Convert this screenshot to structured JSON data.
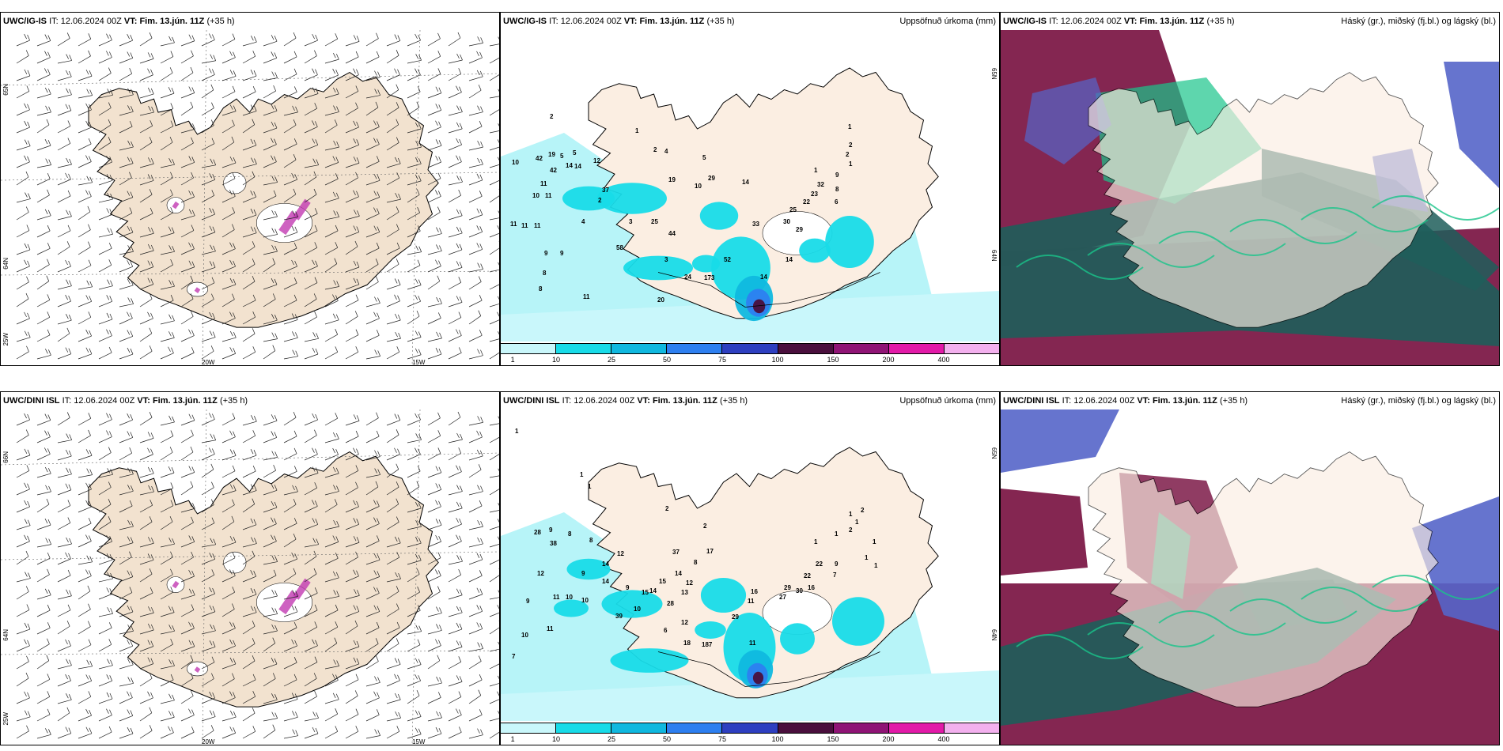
{
  "colors": {
    "land": "#f2e2cf",
    "land_light": "#fbeee2",
    "sea_precip": "#b7f4f8",
    "cyan": "#16d9e6",
    "blue": "#3f7fd8",
    "purple": "#6b2b8f",
    "maroon": "#7d1a48",
    "teal": "#1e5e5a",
    "green": "#19c48a",
    "cloud_blue": "#5565c9",
    "magenta": "#c23ab2"
  },
  "legend": {
    "labels": [
      "1",
      "10",
      "25",
      "50",
      "75",
      "100",
      "150",
      "200",
      "400"
    ],
    "colors": [
      "#c9f7fb",
      "#18dbe8",
      "#10b8df",
      "#2d7ff0",
      "#2e3fc0",
      "#4a0f3d",
      "#8f1475",
      "#e21aa8",
      "#f3b0ee"
    ]
  },
  "rows": [
    {
      "model": "UWC/IG-IS",
      "wind": {
        "it_label": "IT:",
        "it": "12.06.2024 00Z",
        "vt_label": "VT:",
        "vt": "Fim. 13.jún. 11Z",
        "lead": "(+35 h)",
        "lon_labels": [
          "20W",
          "15W"
        ],
        "lat_labels": [
          "65N",
          "64N",
          "25W"
        ]
      },
      "precip": {
        "it_label": "IT:",
        "it": "12.06.2024 00Z",
        "vt_label": "VT:",
        "vt": "Fim. 13.jún. 11Z",
        "lead": "(+35 h)",
        "right": "Uppsöfnuð úrkoma (mm)",
        "lat_labels": [
          "65N",
          "64N"
        ],
        "numbers": [
          {
            "t": "2",
            "x": 62,
            "y": 112
          },
          {
            "t": "1",
            "x": 170,
            "y": 130
          },
          {
            "t": "10",
            "x": 14,
            "y": 170
          },
          {
            "t": "42",
            "x": 44,
            "y": 165
          },
          {
            "t": "19",
            "x": 60,
            "y": 160
          },
          {
            "t": "5",
            "x": 75,
            "y": 162
          },
          {
            "t": "5",
            "x": 91,
            "y": 158
          },
          {
            "t": "42",
            "x": 62,
            "y": 180
          },
          {
            "t": "14",
            "x": 82,
            "y": 174
          },
          {
            "t": "14",
            "x": 93,
            "y": 175
          },
          {
            "t": "12",
            "x": 117,
            "y": 168
          },
          {
            "t": "2",
            "x": 193,
            "y": 154
          },
          {
            "t": "4",
            "x": 207,
            "y": 156
          },
          {
            "t": "5",
            "x": 255,
            "y": 164
          },
          {
            "t": "11",
            "x": 50,
            "y": 197
          },
          {
            "t": "37",
            "x": 128,
            "y": 205
          },
          {
            "t": "2",
            "x": 123,
            "y": 218
          },
          {
            "t": "10",
            "x": 40,
            "y": 212
          },
          {
            "t": "11",
            "x": 56,
            "y": 212
          },
          {
            "t": "19",
            "x": 212,
            "y": 192
          },
          {
            "t": "29",
            "x": 262,
            "y": 190
          },
          {
            "t": "10",
            "x": 245,
            "y": 200
          },
          {
            "t": "14",
            "x": 305,
            "y": 195
          },
          {
            "t": "1",
            "x": 396,
            "y": 180
          },
          {
            "t": "1",
            "x": 440,
            "y": 172
          },
          {
            "t": "2",
            "x": 436,
            "y": 160
          },
          {
            "t": "2",
            "x": 440,
            "y": 148
          },
          {
            "t": "1",
            "x": 439,
            "y": 125
          },
          {
            "t": "9",
            "x": 423,
            "y": 186
          },
          {
            "t": "8",
            "x": 423,
            "y": 204
          },
          {
            "t": "6",
            "x": 422,
            "y": 220
          },
          {
            "t": "32",
            "x": 400,
            "y": 198
          },
          {
            "t": "23",
            "x": 392,
            "y": 210
          },
          {
            "t": "22",
            "x": 382,
            "y": 220
          },
          {
            "t": "25",
            "x": 365,
            "y": 230
          },
          {
            "t": "30",
            "x": 357,
            "y": 245
          },
          {
            "t": "29",
            "x": 373,
            "y": 255
          },
          {
            "t": "33",
            "x": 318,
            "y": 248
          },
          {
            "t": "11",
            "x": 12,
            "y": 248
          },
          {
            "t": "11",
            "x": 26,
            "y": 250
          },
          {
            "t": "11",
            "x": 42,
            "y": 250
          },
          {
            "t": "4",
            "x": 102,
            "y": 245
          },
          {
            "t": "3",
            "x": 162,
            "y": 245
          },
          {
            "t": "25",
            "x": 190,
            "y": 245
          },
          {
            "t": "44",
            "x": 212,
            "y": 260
          },
          {
            "t": "9",
            "x": 55,
            "y": 285
          },
          {
            "t": "9",
            "x": 75,
            "y": 285
          },
          {
            "t": "58",
            "x": 146,
            "y": 278
          },
          {
            "t": "14",
            "x": 360,
            "y": 293
          },
          {
            "t": "52",
            "x": 282,
            "y": 293
          },
          {
            "t": "3",
            "x": 207,
            "y": 293
          },
          {
            "t": "8",
            "x": 53,
            "y": 310
          },
          {
            "t": "8",
            "x": 48,
            "y": 330
          },
          {
            "t": "14",
            "x": 328,
            "y": 315
          },
          {
            "t": "24",
            "x": 232,
            "y": 315
          },
          {
            "t": "173",
            "x": 257,
            "y": 316
          },
          {
            "t": "11",
            "x": 104,
            "y": 340
          },
          {
            "t": "20",
            "x": 198,
            "y": 344
          }
        ]
      },
      "cloud": {
        "it_label": "IT:",
        "it": "12.06.2024 00Z",
        "vt_label": "VT:",
        "vt": "Fim. 13.jún. 11Z",
        "lead": "(+35 h)",
        "right": "Háský (gr.), miðský (fj.bl.) og lágský (bl.)"
      }
    },
    {
      "model": "UWC/DINI ISL",
      "wind": {
        "it_label": "IT:",
        "it": "12.06.2024 00Z",
        "vt_label": "VT:",
        "vt": "Fim. 13.jún. 11Z",
        "lead": "(+35 h)",
        "lon_labels": [
          "20W",
          "15W"
        ],
        "lat_labels": [
          "66N",
          "64N",
          "25W"
        ]
      },
      "precip": {
        "it_label": "IT:",
        "it": "12.06.2024 00Z",
        "vt_label": "VT:",
        "vt": "Fim. 13.jún. 11Z",
        "lead": "(+35 h)",
        "right": "Uppsöfnuð úrkoma (mm)",
        "lat_labels": [
          "65N",
          "64N"
        ],
        "numbers": [
          {
            "t": "1",
            "x": 18,
            "y": 30
          },
          {
            "t": "1",
            "x": 100,
            "y": 85
          },
          {
            "t": "1",
            "x": 110,
            "y": 100
          },
          {
            "t": "2",
            "x": 208,
            "y": 128
          },
          {
            "t": "2",
            "x": 256,
            "y": 150
          },
          {
            "t": "28",
            "x": 42,
            "y": 158
          },
          {
            "t": "9",
            "x": 61,
            "y": 155
          },
          {
            "t": "8",
            "x": 85,
            "y": 160
          },
          {
            "t": "8",
            "x": 112,
            "y": 168
          },
          {
            "t": "38",
            "x": 62,
            "y": 172
          },
          {
            "t": "12",
            "x": 147,
            "y": 185
          },
          {
            "t": "37",
            "x": 217,
            "y": 183
          },
          {
            "t": "17",
            "x": 260,
            "y": 182
          },
          {
            "t": "8",
            "x": 244,
            "y": 196
          },
          {
            "t": "1",
            "x": 396,
            "y": 170
          },
          {
            "t": "1",
            "x": 422,
            "y": 160
          },
          {
            "t": "2",
            "x": 440,
            "y": 155
          },
          {
            "t": "1",
            "x": 448,
            "y": 145
          },
          {
            "t": "2",
            "x": 455,
            "y": 130
          },
          {
            "t": "1",
            "x": 440,
            "y": 135
          },
          {
            "t": "1",
            "x": 470,
            "y": 170
          },
          {
            "t": "1",
            "x": 460,
            "y": 190
          },
          {
            "t": "1",
            "x": 472,
            "y": 200
          },
          {
            "t": "9",
            "x": 422,
            "y": 198
          },
          {
            "t": "7",
            "x": 420,
            "y": 212
          },
          {
            "t": "22",
            "x": 398,
            "y": 198
          },
          {
            "t": "22",
            "x": 383,
            "y": 213
          },
          {
            "t": "16",
            "x": 388,
            "y": 228
          },
          {
            "t": "29",
            "x": 358,
            "y": 228
          },
          {
            "t": "30",
            "x": 373,
            "y": 232
          },
          {
            "t": "27",
            "x": 352,
            "y": 240
          },
          {
            "t": "9",
            "x": 102,
            "y": 210
          },
          {
            "t": "14",
            "x": 128,
            "y": 198
          },
          {
            "t": "14",
            "x": 128,
            "y": 220
          },
          {
            "t": "9",
            "x": 158,
            "y": 228
          },
          {
            "t": "12",
            "x": 46,
            "y": 210
          },
          {
            "t": "15",
            "x": 200,
            "y": 220
          },
          {
            "t": "14",
            "x": 220,
            "y": 210
          },
          {
            "t": "12",
            "x": 234,
            "y": 222
          },
          {
            "t": "15",
            "x": 178,
            "y": 234
          },
          {
            "t": "14",
            "x": 188,
            "y": 232
          },
          {
            "t": "13",
            "x": 228,
            "y": 234
          },
          {
            "t": "16",
            "x": 316,
            "y": 233
          },
          {
            "t": "11",
            "x": 312,
            "y": 245
          },
          {
            "t": "28",
            "x": 210,
            "y": 248
          },
          {
            "t": "9",
            "x": 32,
            "y": 245
          },
          {
            "t": "11",
            "x": 66,
            "y": 240
          },
          {
            "t": "10",
            "x": 82,
            "y": 240
          },
          {
            "t": "10",
            "x": 102,
            "y": 244
          },
          {
            "t": "10",
            "x": 168,
            "y": 255
          },
          {
            "t": "39",
            "x": 145,
            "y": 264
          },
          {
            "t": "29",
            "x": 292,
            "y": 265
          },
          {
            "t": "12",
            "x": 228,
            "y": 272
          },
          {
            "t": "6",
            "x": 206,
            "y": 282
          },
          {
            "t": "11",
            "x": 58,
            "y": 280
          },
          {
            "t": "10",
            "x": 26,
            "y": 288
          },
          {
            "t": "18",
            "x": 231,
            "y": 298
          },
          {
            "t": "187",
            "x": 254,
            "y": 300
          },
          {
            "t": "11",
            "x": 314,
            "y": 298
          },
          {
            "t": "7",
            "x": 14,
            "y": 315
          }
        ]
      },
      "cloud": {
        "it_label": "IT:",
        "it": "12.06.2024 00Z",
        "vt_label": "VT:",
        "vt": "Fim. 13.jún. 11Z",
        "lead": "(+35 h)",
        "right": "Háský (gr.), miðský (fj.bl.) og lágský (bl.)"
      }
    }
  ]
}
